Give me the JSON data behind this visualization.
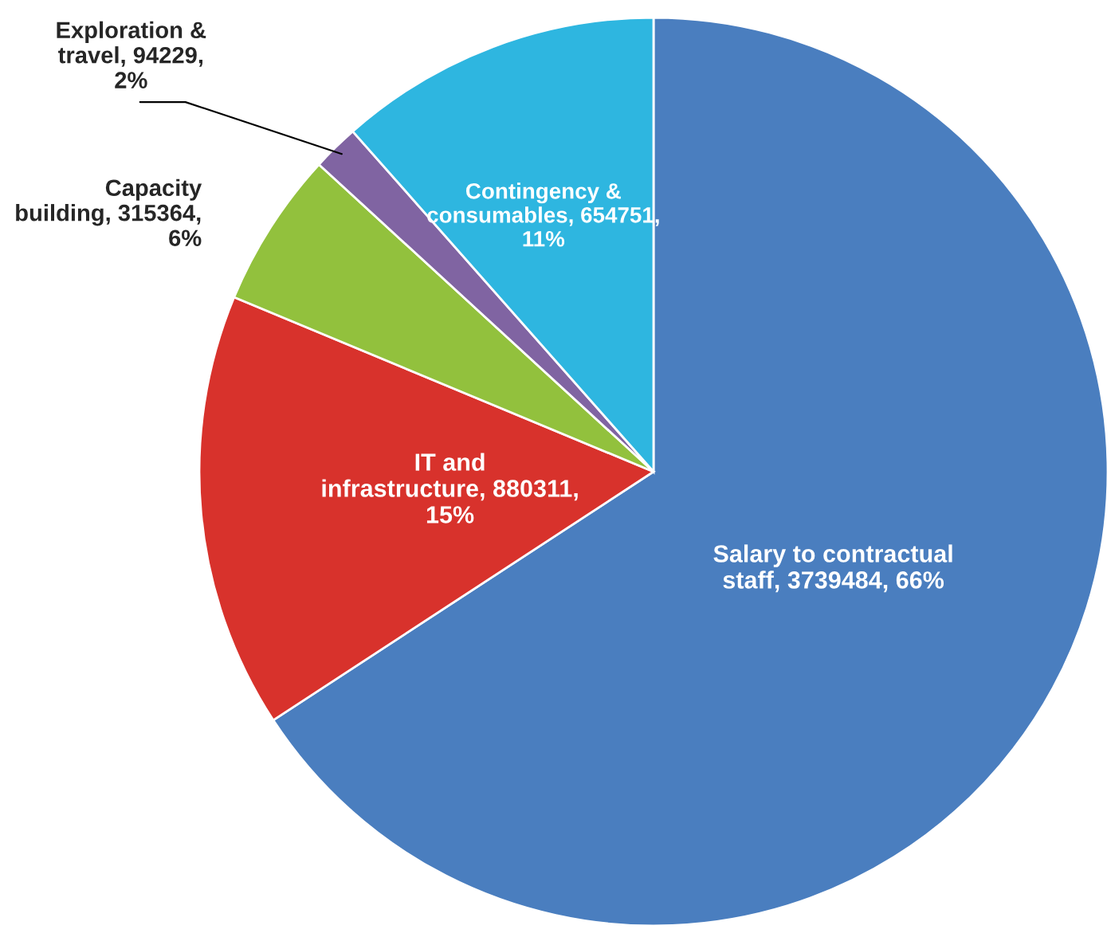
{
  "chart_data": {
    "type": "pie",
    "categories": [
      "Salary to contractual staff",
      "IT and infrastructure",
      "Capacity building",
      "Exploration & travel",
      "Contingency & consumables"
    ],
    "values": [
      3739484,
      880311,
      315364,
      94229,
      654751
    ],
    "value_labels": [
      "3739484, 66%",
      "880311, 15%",
      "315364, 6%",
      "94229, 2%",
      "654751, 11%"
    ],
    "colors": [
      "#4a7ebf",
      "#d8322c",
      "#92c13d",
      "#8064a2",
      "#2eb6e0"
    ],
    "legend": false
  }
}
